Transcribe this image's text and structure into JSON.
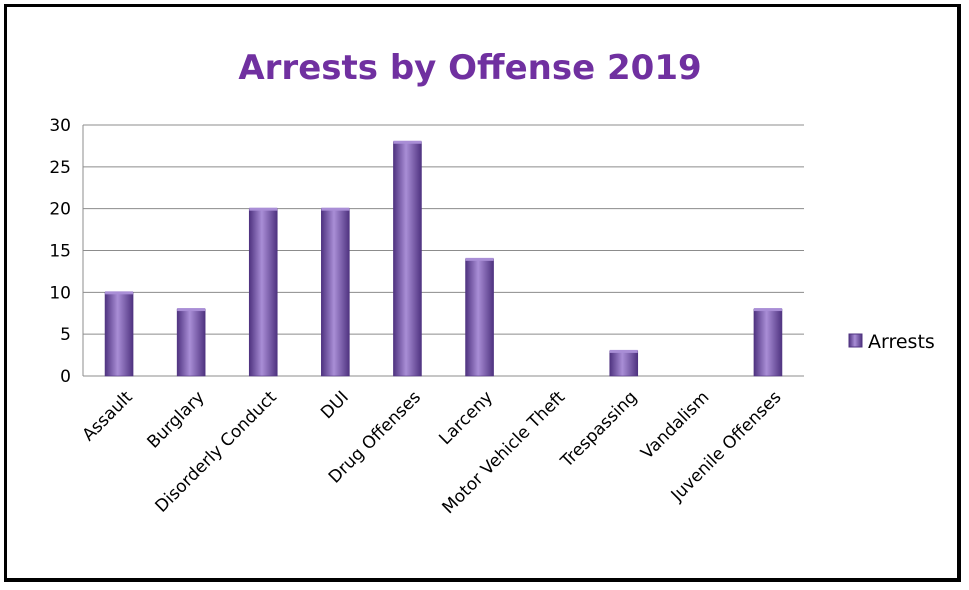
{
  "chart_data": {
    "type": "bar",
    "title": "Arrests by Offense 2019",
    "categories": [
      "Assault",
      "Burglary",
      "Disorderly Conduct",
      "DUI",
      "Drug Offenses",
      "Larceny",
      "Motor Vehicle Theft",
      "Trespassing",
      "Vandalism",
      "Juvenile Offenses"
    ],
    "series": [
      {
        "name": "Arrests",
        "values": [
          10,
          8,
          20,
          20,
          28,
          14,
          0,
          3,
          0,
          8
        ]
      }
    ],
    "ylim": [
      0,
      30
    ],
    "yticks": [
      "0",
      "5",
      "10",
      "15",
      "20",
      "25",
      "30"
    ],
    "grid": true,
    "legend_position": "right",
    "colors": {
      "bar": "#7a58b0",
      "bar_dark": "#4f3380",
      "bar_light": "#a98ed6",
      "title": "#7030a0",
      "grid": "#8c8c8c"
    }
  }
}
